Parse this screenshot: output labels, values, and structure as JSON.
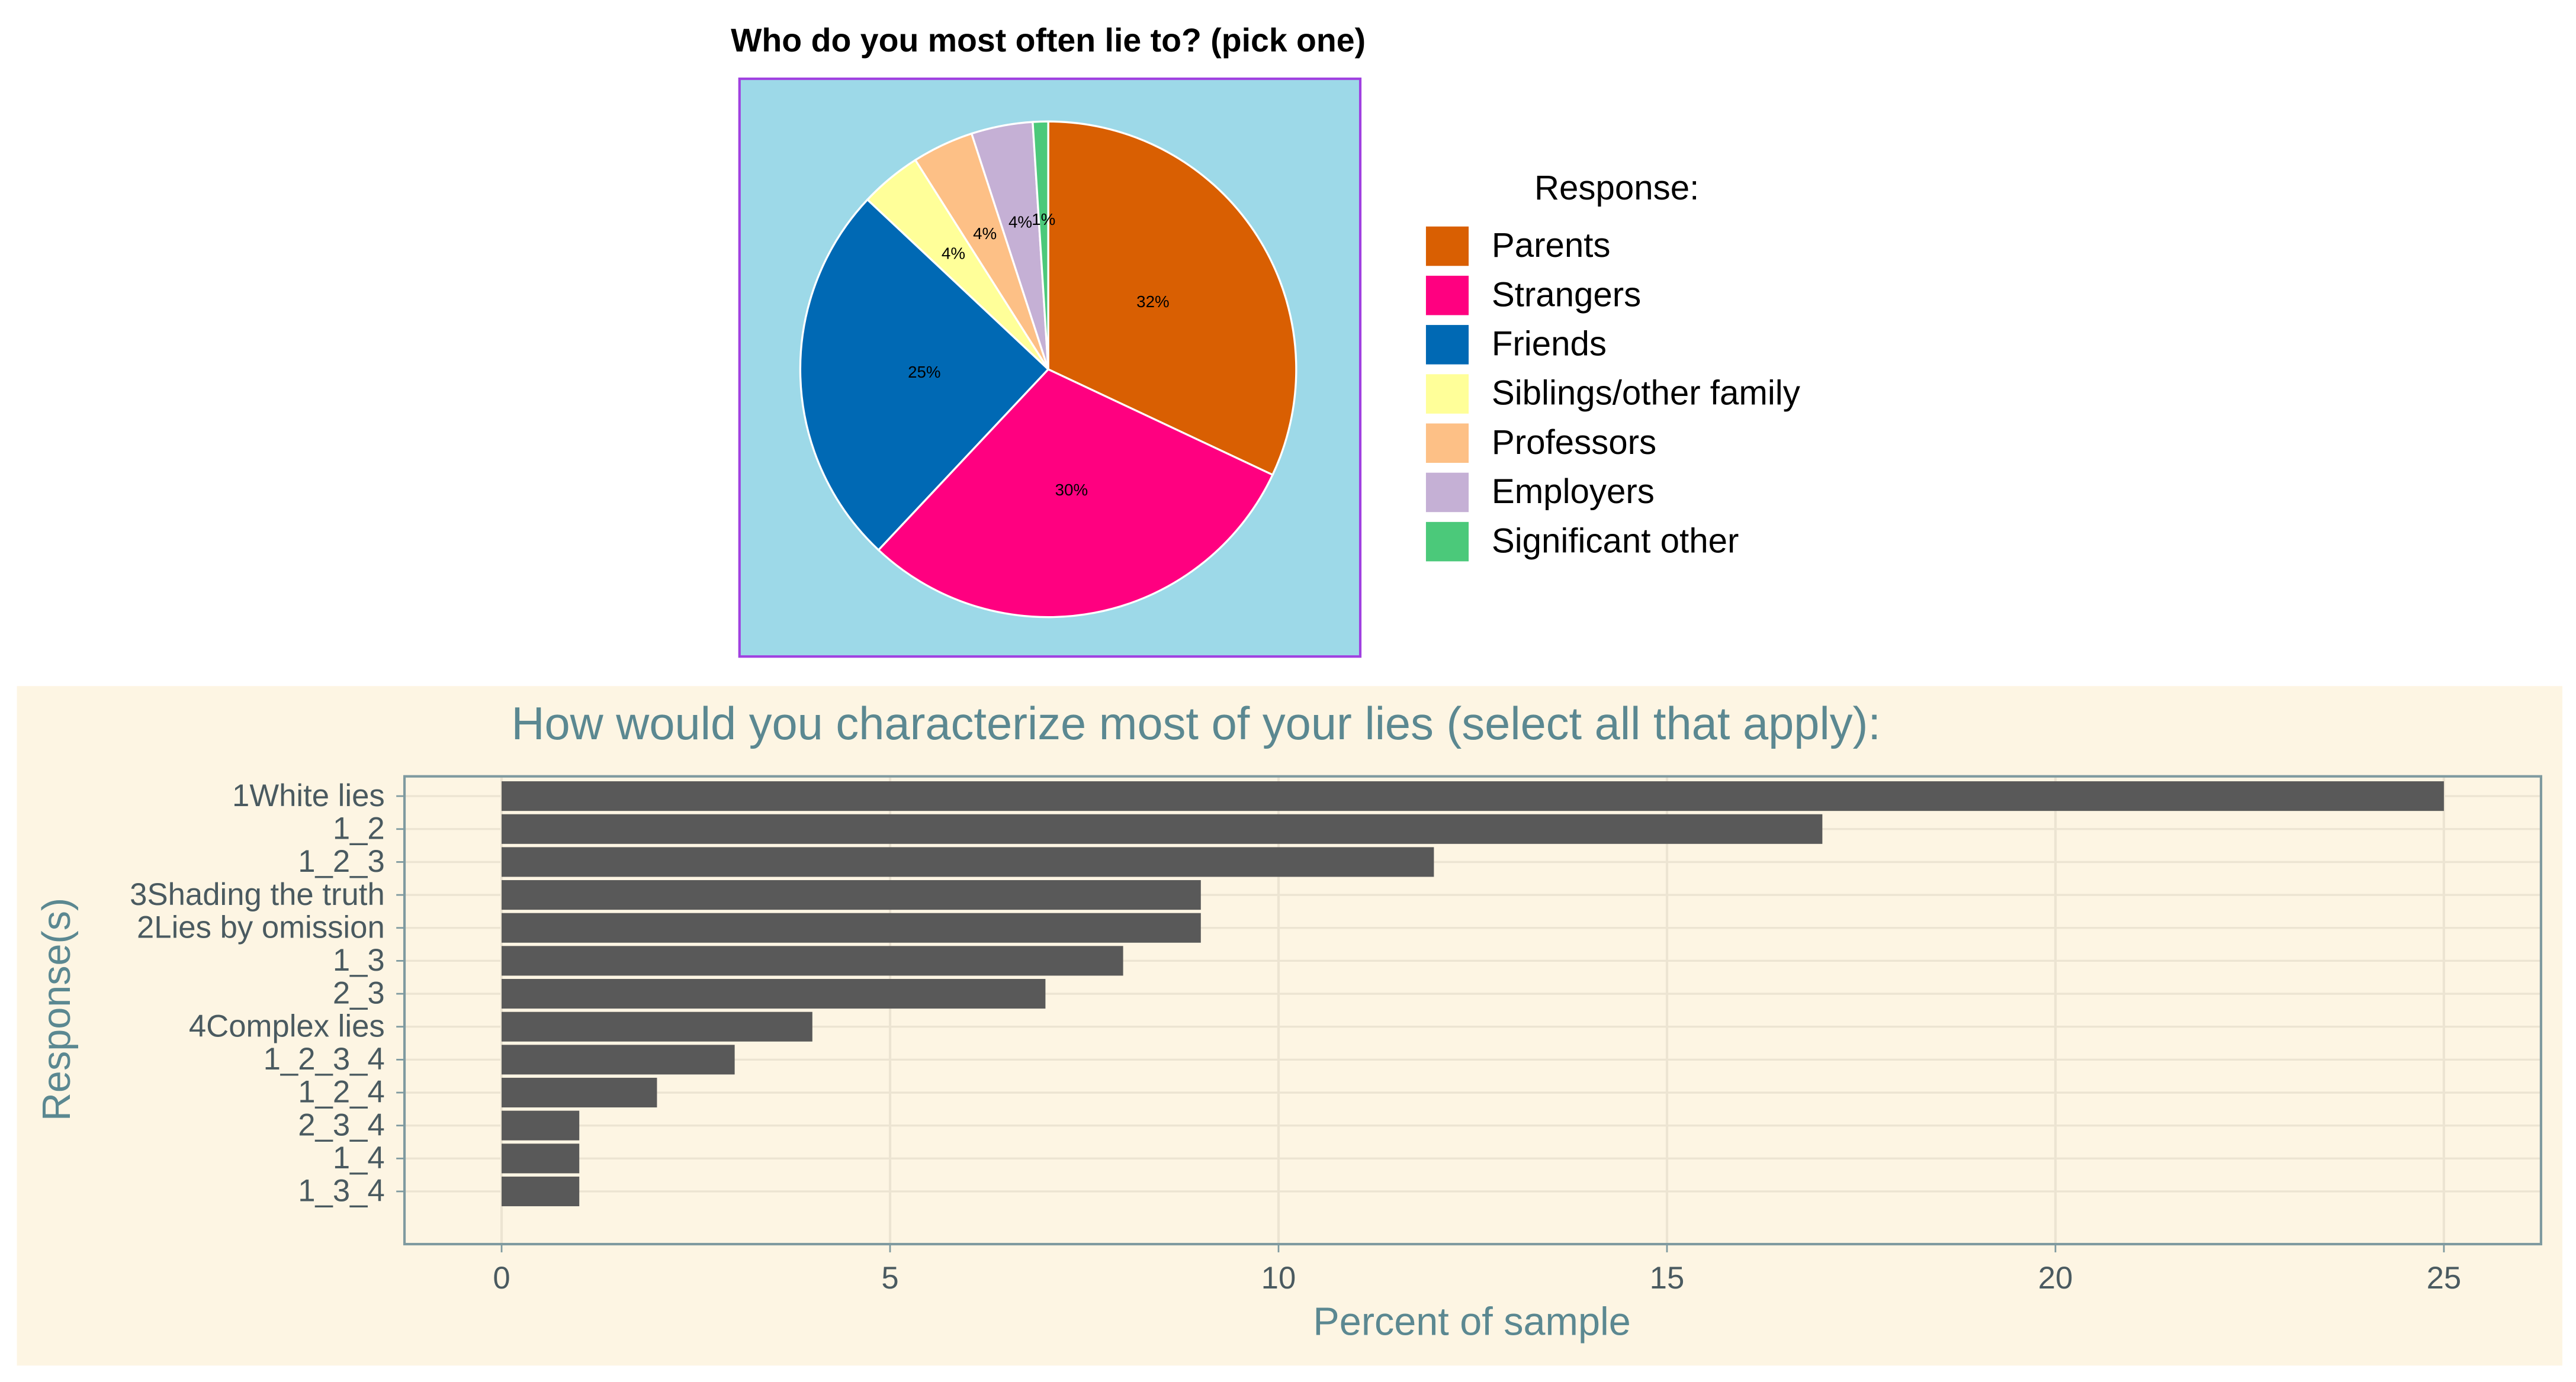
{
  "chart_data": [
    {
      "type": "pie",
      "title": "Who do you most often lie to? (pick one)",
      "legend_title": "Response:",
      "categories": [
        "Parents",
        "Strangers",
        "Friends",
        "Siblings/other family",
        "Professors",
        "Employers",
        "Significant other"
      ],
      "values": [
        32,
        30,
        25,
        4,
        4,
        4,
        1
      ],
      "value_labels": [
        "32%",
        "30%",
        "25%",
        "4%",
        "4%",
        "4%",
        "1%"
      ],
      "colors": [
        "#d95f02",
        "#ff0080",
        "#0069b4",
        "#ffff99",
        "#fdc086",
        "#c5b0d5",
        "#4bc97a"
      ],
      "legend": "right"
    },
    {
      "type": "barh",
      "title": "How would you characterize most of your lies (select all that apply):",
      "x_label": "Percent of sample",
      "y_label": "Response(s)",
      "categories": [
        "1White lies",
        "1_2",
        "1_2_3",
        "3Shading the truth",
        "2Lies by omission",
        "1_3",
        "2_3",
        "4Complex lies",
        "1_2_3_4",
        "1_2_4",
        "2_3_4",
        "1_4",
        "1_3_4"
      ],
      "values": [
        25,
        17,
        12,
        9,
        9,
        8,
        7,
        4,
        3,
        2,
        1,
        1,
        1
      ],
      "color": "#595959",
      "xlim": [
        -1.25,
        26.25
      ],
      "xticks": [
        0,
        5,
        10,
        15,
        20,
        25
      ],
      "grid": true
    }
  ]
}
